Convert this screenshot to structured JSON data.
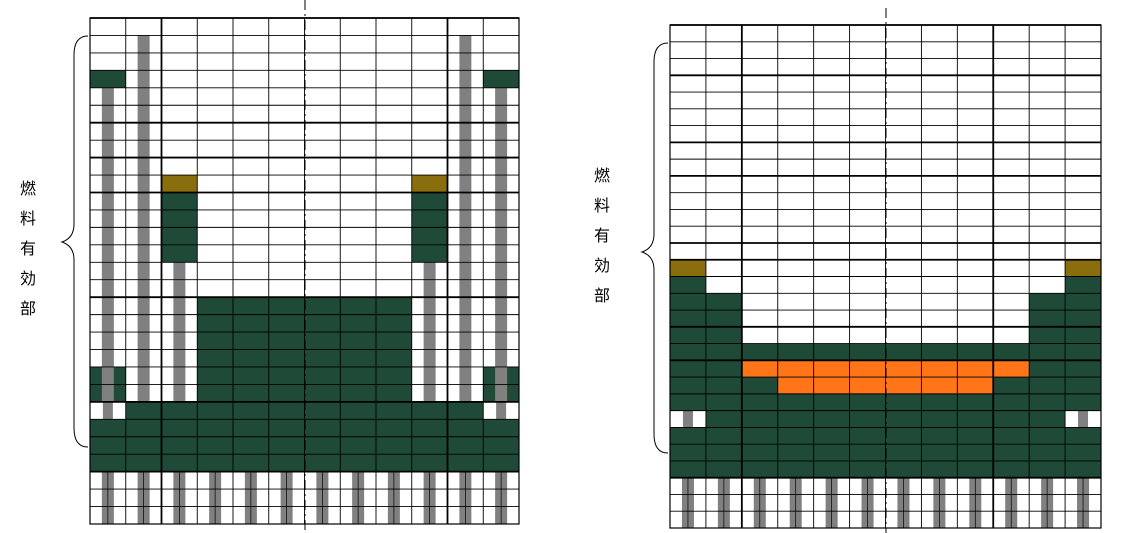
{
  "colors": {
    "fuel_dark_green": "#1e4a37",
    "absorber_olive": "#8a6d0c",
    "guide_tube_gray": "#808080",
    "orange_region": "#ff7518",
    "grid_line": "#000000",
    "background": "#ffffff"
  },
  "panels": [
    {
      "id": "left",
      "label": "燃料有効部",
      "label_chars": [
        "燃",
        "料",
        "有",
        "効",
        "部"
      ]
    },
    {
      "id": "right",
      "label": "燃料有効部",
      "label_chars": [
        "燃",
        "料",
        "有",
        "効",
        "部"
      ]
    }
  ]
}
